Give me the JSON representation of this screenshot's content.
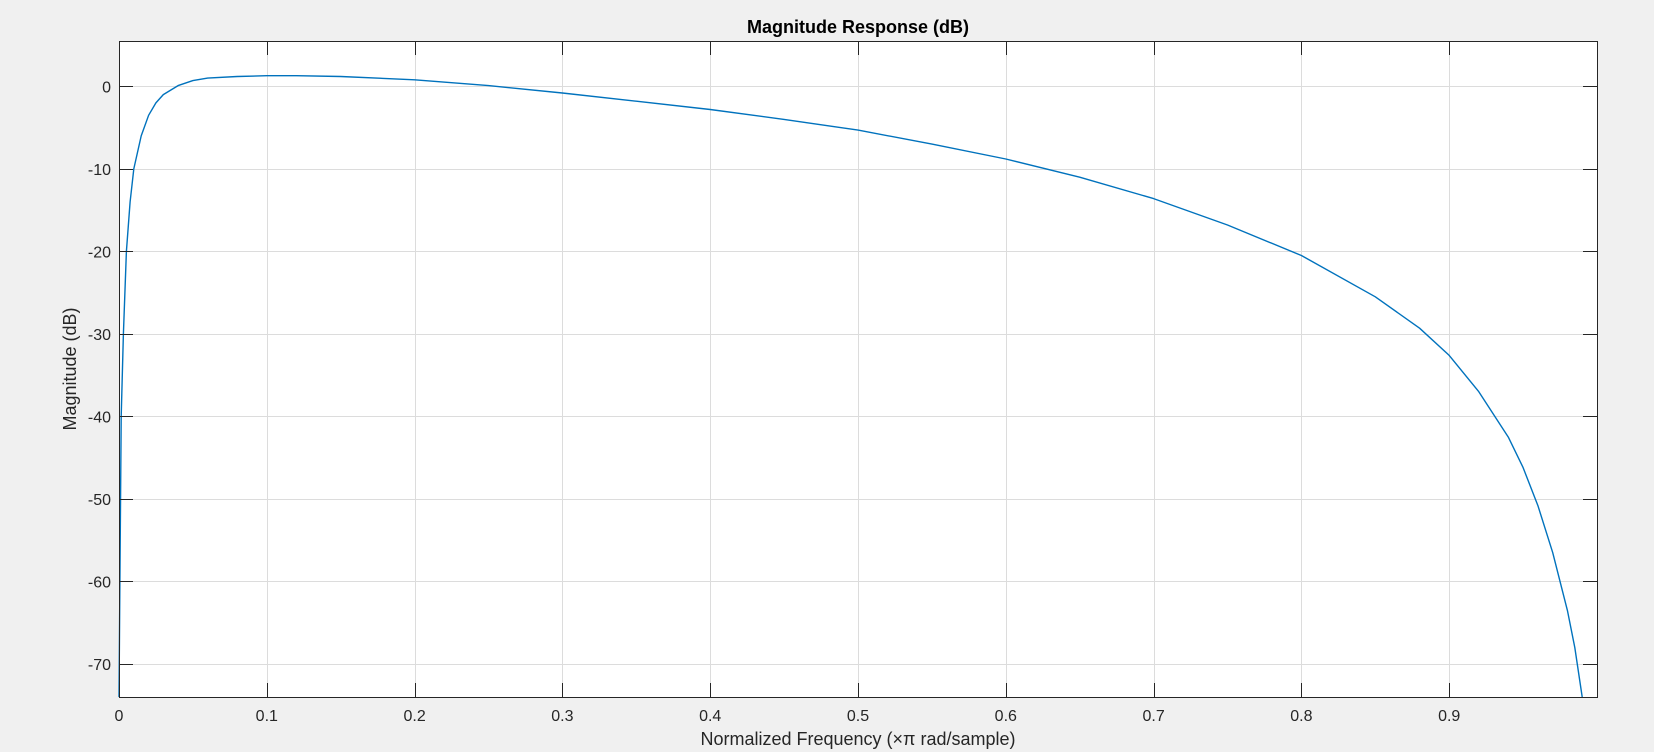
{
  "chart_data": {
    "type": "line",
    "title": "Magnitude Response (dB)",
    "xlabel": "Normalized Frequency (×π rad/sample)",
    "ylabel": "Magnitude (dB)",
    "xlim": [
      0,
      1
    ],
    "ylim": [
      -74,
      5.5
    ],
    "x_ticks": [
      0,
      0.1,
      0.2,
      0.3,
      0.4,
      0.5,
      0.6,
      0.7,
      0.8,
      0.9
    ],
    "x_tick_labels": [
      "0",
      "0.1",
      "0.2",
      "0.3",
      "0.4",
      "0.5",
      "0.6",
      "0.7",
      "0.8",
      "0.9"
    ],
    "y_ticks": [
      0,
      -10,
      -20,
      -30,
      -40,
      -50,
      -60,
      -70
    ],
    "y_tick_labels": [
      "0",
      "-10",
      "-20",
      "-30",
      "-40",
      "-50",
      "-60",
      "-70"
    ],
    "grid": true,
    "series": [
      {
        "color": "#0072bd",
        "x": [
          0,
          0.0015,
          0.003,
          0.005,
          0.0075,
          0.01,
          0.015,
          0.02,
          0.025,
          0.03,
          0.04,
          0.05,
          0.06,
          0.08,
          0.1,
          0.12,
          0.15,
          0.2,
          0.25,
          0.3,
          0.35,
          0.4,
          0.45,
          0.5,
          0.55,
          0.6,
          0.65,
          0.7,
          0.75,
          0.8,
          0.85,
          0.88,
          0.9,
          0.92,
          0.94,
          0.95,
          0.96,
          0.97,
          0.98,
          0.985,
          0.99
        ],
        "y": [
          -74,
          -40,
          -30,
          -20,
          -14,
          -10,
          -6,
          -3.5,
          -2,
          -1,
          0.1,
          0.7,
          1,
          1.2,
          1.3,
          1.3,
          1.2,
          0.8,
          0.1,
          -0.8,
          -1.8,
          -2.8,
          -4,
          -5.3,
          -7,
          -8.8,
          -11,
          -13.6,
          -16.8,
          -20.5,
          -25.5,
          -29.3,
          -32.6,
          -37,
          -42.5,
          -46.2,
          -50.8,
          -56.5,
          -63.5,
          -68,
          -74
        ]
      }
    ]
  }
}
